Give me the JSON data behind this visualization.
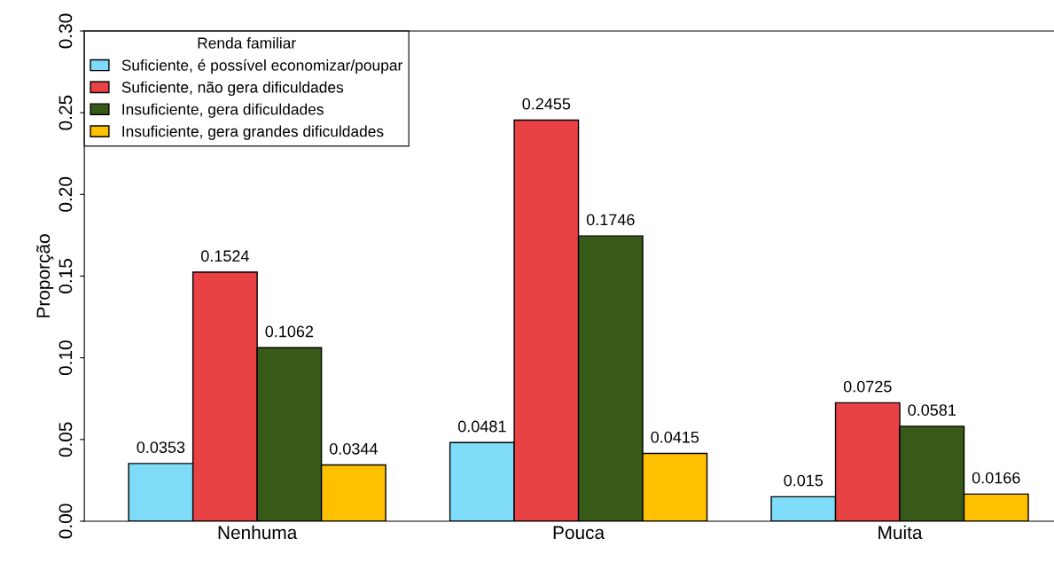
{
  "chart_data": {
    "type": "bar",
    "ylabel": "Proporção",
    "legend_title": "Renda familiar",
    "legend": "top left",
    "data_labels": true,
    "categories": [
      "Nenhuma",
      "Pouca",
      "Muita"
    ],
    "series": [
      {
        "name": "Suficiente, é possível economizar/poupar",
        "color": "#7fdcf8",
        "values": [
          0.0353,
          0.0481,
          0.015
        ]
      },
      {
        "name": "Suficiente, não gera dificuldades",
        "color": "#e84245",
        "values": [
          0.1524,
          0.2455,
          0.0725
        ]
      },
      {
        "name": "Insuficiente, gera dificuldades",
        "color": "#375a18",
        "values": [
          0.1062,
          0.1746,
          0.0581
        ]
      },
      {
        "name": "Insuficiente, gera grandes dificuldades",
        "color": "#ffc000",
        "values": [
          0.0344,
          0.0415,
          0.0166
        ]
      }
    ],
    "ylim": [
      0,
      0.3
    ],
    "yticks": [
      {
        "value": 0,
        "label": "0.00"
      },
      {
        "value": 0.05,
        "label": "0.05"
      },
      {
        "value": 0.1,
        "label": "0.10"
      },
      {
        "value": 0.15,
        "label": "0.15"
      },
      {
        "value": 0.2,
        "label": "0.20"
      },
      {
        "value": 0.25,
        "label": "0.25"
      },
      {
        "value": 0.3,
        "label": "0.30"
      }
    ]
  }
}
